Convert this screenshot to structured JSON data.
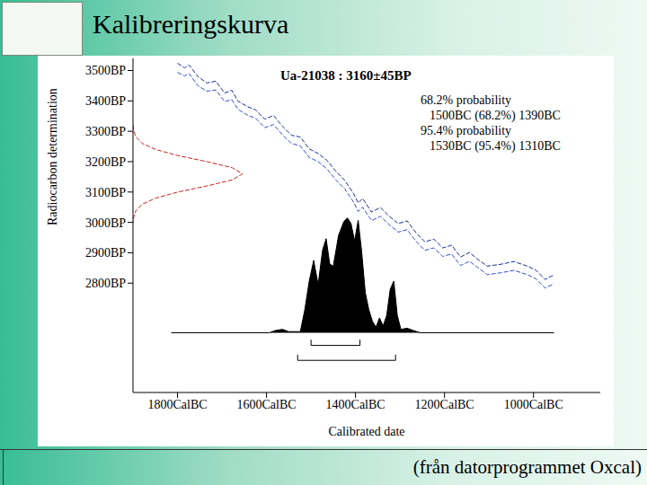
{
  "title": "Kalibreringskurva",
  "footer": "(från datorprogrammet Oxcal)",
  "chart_data": {
    "type": "line",
    "title": "Ua-21038 : 3160±45BP",
    "x_label": "Calibrated date",
    "y_label": "Radiocarbon determination",
    "annotations": [
      "68.2% probability",
      "1500BC (68.2%) 1390BC",
      "95.4% probability",
      "1530BC (95.4%) 1310BC"
    ],
    "xlim": [
      -1900,
      -850
    ],
    "xticks": [
      {
        "value": -1800,
        "label": "1800CalBC"
      },
      {
        "value": -1600,
        "label": "1600CalBC"
      },
      {
        "value": -1400,
        "label": "1400CalBC"
      },
      {
        "value": -1200,
        "label": "1200CalBC"
      },
      {
        "value": -1000,
        "label": "1000CalBC"
      }
    ],
    "ylim": [
      2440,
      3540
    ],
    "yticks": [
      {
        "value": 2800,
        "label": "2800BP"
      },
      {
        "value": 2900,
        "label": "2900BP"
      },
      {
        "value": 3000,
        "label": "3000BP"
      },
      {
        "value": 3100,
        "label": "3100BP"
      },
      {
        "value": 3200,
        "label": "3200BP"
      },
      {
        "value": 3300,
        "label": "3300BP"
      },
      {
        "value": 3400,
        "label": "3400BP"
      },
      {
        "value": 3500,
        "label": "3500BP"
      }
    ],
    "y2lim": [
      -0.52,
      2.39
    ],
    "y2ticks": [],
    "grid": false,
    "ranges": [
      {
        "from": -1500,
        "to": -1390
      },
      {
        "from": -1530,
        "to": -1310
      }
    ],
    "series": [
      {
        "color": "#1c2a9c",
        "line_style": "dashed",
        "x": [
          -1800,
          -1784,
          -1774,
          -1754,
          -1734,
          -1714,
          -1694,
          -1678,
          -1664,
          -1644,
          -1624,
          -1604,
          -1584,
          -1564,
          -1544,
          -1524,
          -1504,
          -1484,
          -1464,
          -1444,
          -1424,
          -1404,
          -1394,
          -1384,
          -1364,
          -1344,
          -1324,
          -1304,
          -1284,
          -1264,
          -1244,
          -1224,
          -1204,
          -1184,
          -1164,
          -1144,
          -1124,
          -1104,
          -1074,
          -1044,
          -1014,
          -994,
          -974,
          -954
        ],
        "values": [
          3524,
          3509,
          3518,
          3480,
          3459,
          3465,
          3426,
          3435,
          3399,
          3382,
          3370,
          3340,
          3352,
          3316,
          3287,
          3281,
          3242,
          3227,
          3204,
          3168,
          3138,
          3094,
          3064,
          3079,
          3034,
          3049,
          3020,
          2996,
          3005,
          2966,
          2936,
          2945,
          2916,
          2925,
          2886,
          2901,
          2877,
          2856,
          2862,
          2871,
          2856,
          2842,
          2812,
          2827
        ]
      },
      {
        "color": "#3a4ad8",
        "line_style": "dashed",
        "x": [
          -1800,
          -1784,
          -1774,
          -1754,
          -1734,
          -1714,
          -1694,
          -1678,
          -1664,
          -1644,
          -1624,
          -1604,
          -1584,
          -1564,
          -1544,
          -1524,
          -1504,
          -1484,
          -1464,
          -1444,
          -1424,
          -1404,
          -1394,
          -1384,
          -1364,
          -1344,
          -1324,
          -1304,
          -1284,
          -1264,
          -1244,
          -1224,
          -1204,
          -1184,
          -1164,
          -1144,
          -1124,
          -1104,
          -1074,
          -1044,
          -1014,
          -994,
          -974,
          -954
        ],
        "values": [
          3494,
          3482,
          3490,
          3450,
          3432,
          3436,
          3398,
          3404,
          3372,
          3354,
          3342,
          3312,
          3322,
          3288,
          3260,
          3252,
          3214,
          3200,
          3176,
          3140,
          3110,
          3066,
          3036,
          3050,
          3006,
          3020,
          2992,
          2968,
          2976,
          2938,
          2908,
          2916,
          2888,
          2896,
          2858,
          2872,
          2850,
          2828,
          2834,
          2842,
          2828,
          2814,
          2784,
          2798
        ]
      },
      {
        "color": "#cc2222",
        "line_style": "dashed",
        "x": [
          -1900,
          -1898,
          -1893,
          -1879,
          -1849,
          -1799,
          -1734,
          -1677,
          -1654,
          -1677,
          -1734,
          -1799,
          -1849,
          -1879,
          -1893,
          -1898,
          -1900
        ],
        "values": [
          3320,
          3300,
          3280,
          3260,
          3240,
          3220,
          3200,
          3180,
          3160,
          3140,
          3120,
          3100,
          3080,
          3060,
          3040,
          3020,
          3000
        ]
      },
      {
        "type": "area",
        "axis": "y2",
        "color": "#000000",
        "x": [
          -1814,
          -1594,
          -1580,
          -1564,
          -1550,
          -1524,
          -1514,
          -1504,
          -1494,
          -1484,
          -1474,
          -1466,
          -1458,
          -1450,
          -1438,
          -1426,
          -1418,
          -1410,
          -1402,
          -1394,
          -1386,
          -1378,
          -1370,
          -1362,
          -1354,
          -1346,
          -1338,
          -1330,
          -1322,
          -1314,
          -1306,
          -1298,
          -1284,
          -1270,
          -1254,
          -954
        ],
        "values": [
          0,
          0,
          0.02,
          0.03,
          0.01,
          0.01,
          0.2,
          0.45,
          0.63,
          0.42,
          0.72,
          0.82,
          0.6,
          0.58,
          0.85,
          0.97,
          1.0,
          0.95,
          0.8,
          0.98,
          0.7,
          0.35,
          0.2,
          0.1,
          0.05,
          0.13,
          0.06,
          0.15,
          0.38,
          0.45,
          0.15,
          0.03,
          0.04,
          0.02,
          0,
          0
        ]
      }
    ]
  }
}
